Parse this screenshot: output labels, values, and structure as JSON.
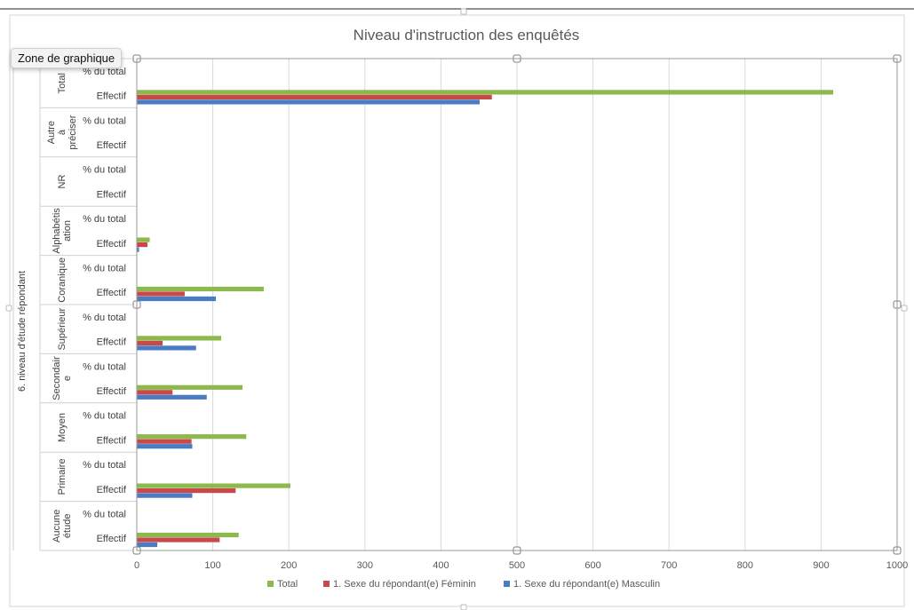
{
  "tooltip": "Zone de graphique",
  "chart_data": {
    "type": "bar",
    "orientation": "horizontal",
    "title": "Niveau d'instruction des enquêtés",
    "outer_axis_label": "6. niveau d'étude répondant",
    "xlim": [
      0,
      1000
    ],
    "x_ticks": [
      0,
      100,
      200,
      300,
      400,
      500,
      600,
      700,
      800,
      900,
      1000
    ],
    "grid": true,
    "legend_position": "bottom",
    "groups": [
      {
        "label": "Total",
        "rows": [
          "% du total",
          "Effectif"
        ]
      },
      {
        "label": "Autre à préciser",
        "rows": [
          "% du total",
          "Effectif"
        ]
      },
      {
        "label": "NR",
        "rows": [
          "% du total",
          "Effectif"
        ]
      },
      {
        "label": "Alphabétis ation",
        "rows": [
          "% du total",
          "Effectif"
        ]
      },
      {
        "label": "Coranique",
        "rows": [
          "% du total",
          "Effectif"
        ]
      },
      {
        "label": "Supérieur",
        "rows": [
          "% du total",
          "Effectif"
        ]
      },
      {
        "label": "Secondair e",
        "rows": [
          "% du total",
          "Effectif"
        ]
      },
      {
        "label": "Moyen",
        "rows": [
          "% du total",
          "Effectif"
        ]
      },
      {
        "label": "Primaire",
        "rows": [
          "% du total",
          "Effectif"
        ]
      },
      {
        "label": "Aucune étude",
        "rows": [
          "% du total",
          "Effectif"
        ]
      }
    ],
    "series": [
      {
        "name": "Total",
        "color": "#8cb84c",
        "values": [
          0,
          916,
          0,
          0,
          0,
          0,
          0,
          17,
          0,
          167,
          0,
          111,
          0,
          139,
          0,
          144,
          0,
          202,
          0,
          134
        ]
      },
      {
        "name": "1.  Sexe du répondant(e) Féminin",
        "color": "#c9494a",
        "values": [
          0,
          467,
          0,
          0,
          0,
          0,
          0,
          14,
          0,
          63,
          0,
          34,
          0,
          47,
          0,
          72,
          0,
          130,
          0,
          109
        ]
      },
      {
        "name": "1.  Sexe du répondant(e) Masculin",
        "color": "#4a7cc4",
        "values": [
          0,
          451,
          0,
          0,
          0,
          0,
          0,
          3,
          0,
          104,
          0,
          78,
          0,
          92,
          0,
          73,
          0,
          73,
          0,
          27
        ]
      }
    ]
  }
}
